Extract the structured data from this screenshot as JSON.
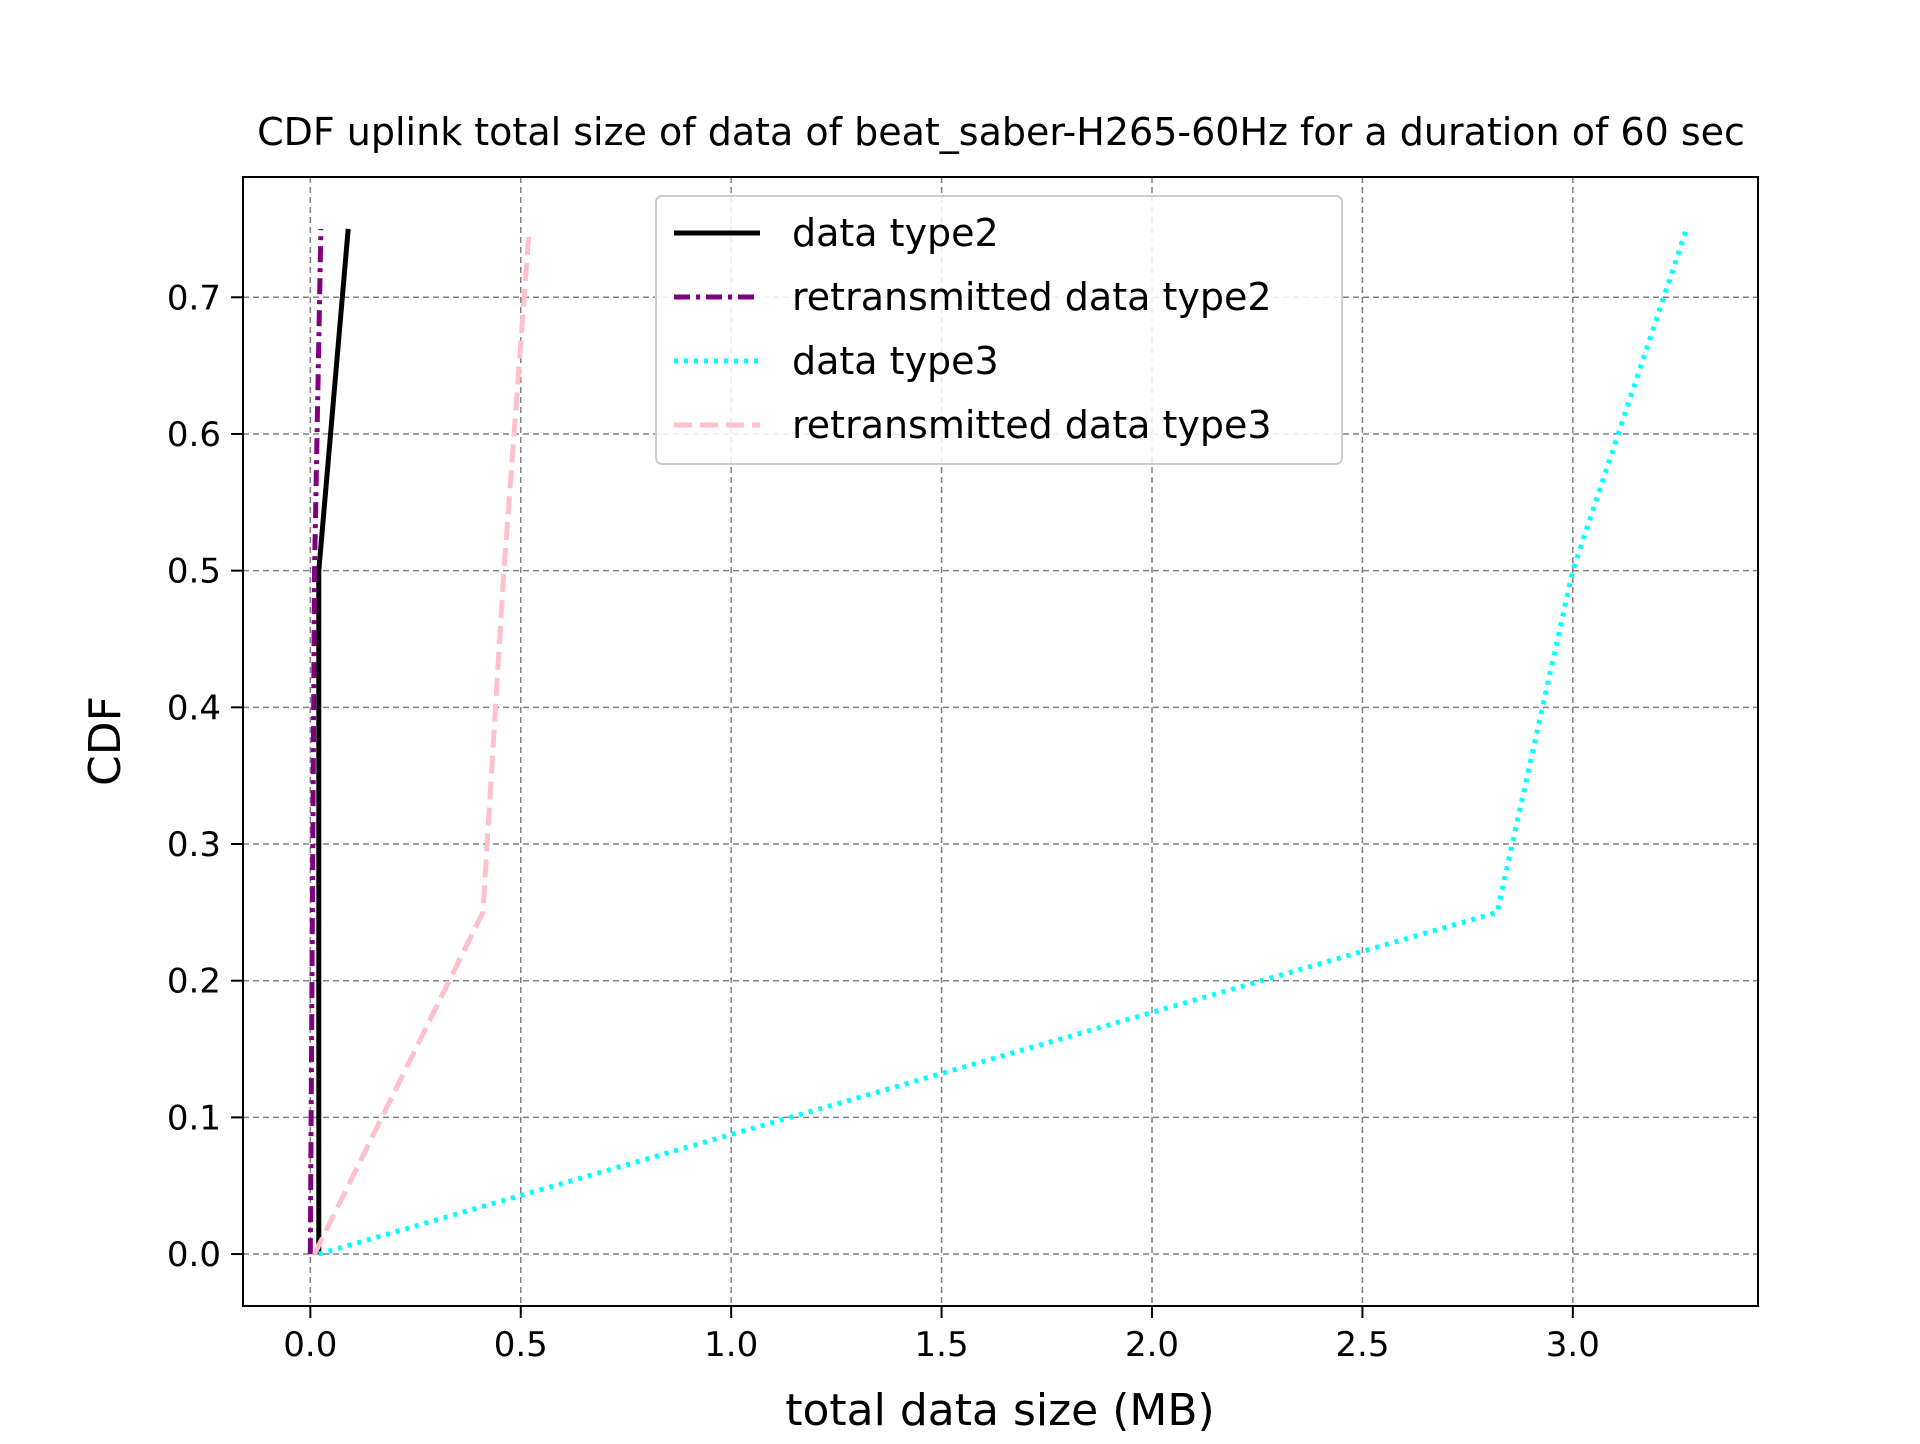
{
  "chart_data": {
    "type": "line",
    "title": "CDF uplink total size of data of beat_saber-H265-60Hz for a duration of 60 sec",
    "xlabel": "total data size (MB)",
    "ylabel": "CDF",
    "xlim": [
      -0.16,
      3.44
    ],
    "ylim": [
      -0.038,
      0.788
    ],
    "x_ticks": [
      0.0,
      0.5,
      1.0,
      1.5,
      2.0,
      2.5,
      3.0
    ],
    "x_tick_labels": [
      "0.0",
      "0.5",
      "1.0",
      "1.5",
      "2.0",
      "2.5",
      "3.0"
    ],
    "y_ticks": [
      0.0,
      0.1,
      0.2,
      0.3,
      0.4,
      0.5,
      0.6,
      0.7
    ],
    "y_tick_labels": [
      "0.0",
      "0.1",
      "0.2",
      "0.3",
      "0.4",
      "0.5",
      "0.6",
      "0.7"
    ],
    "grid": true,
    "legend_position": "top-center",
    "series": [
      {
        "name": "data type2",
        "color": "#000000",
        "style": "solid",
        "x": [
          0.02,
          0.02,
          0.02,
          0.09
        ],
        "y": [
          0.0,
          0.25,
          0.5,
          0.75
        ]
      },
      {
        "name": "retransmitted data type2",
        "color": "#800080",
        "style": "dashdot",
        "x": [
          0.0,
          0.005,
          0.01,
          0.025
        ],
        "y": [
          0.0,
          0.25,
          0.5,
          0.75
        ]
      },
      {
        "name": "data type3",
        "color": "#00FFFF",
        "style": "dotted",
        "x": [
          0.02,
          2.82,
          3.0,
          3.27
        ],
        "y": [
          0.0,
          0.25,
          0.5,
          0.75
        ]
      },
      {
        "name": "retransmitted data type3",
        "color": "#FFC0CB",
        "style": "dashed",
        "x": [
          0.01,
          0.41,
          0.46,
          0.52
        ],
        "y": [
          0.0,
          0.25,
          0.5,
          0.75
        ]
      }
    ]
  }
}
